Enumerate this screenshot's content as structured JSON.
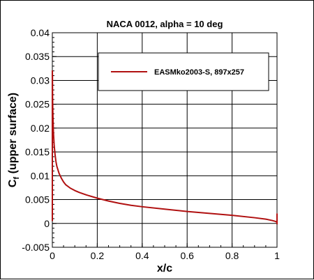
{
  "chart_data": {
    "type": "line",
    "title": "NACA 0012, alpha = 10 deg",
    "xlabel": "x/c",
    "ylabel_main": "C",
    "ylabel_sub": "f",
    "ylabel_rest": " (upper surface)",
    "xlim": [
      0,
      1
    ],
    "ylim": [
      -0.005,
      0.04
    ],
    "xticks": [
      0,
      0.2,
      0.4,
      0.6,
      0.8,
      1
    ],
    "xtick_labels": [
      "0",
      "0.2",
      "0.4",
      "0.6",
      "0.8",
      "1"
    ],
    "yticks": [
      -0.005,
      0,
      0.005,
      0.01,
      0.015,
      0.02,
      0.025,
      0.03,
      0.035,
      0.04
    ],
    "ytick_labels": [
      "-0.005",
      "0",
      "0.005",
      "0.01",
      "0.015",
      "0.02",
      "0.025",
      "0.03",
      "0.035",
      "0.04"
    ],
    "grid": true,
    "legend_position": "top-right",
    "series": [
      {
        "name": "EASMko2003-S, 897x257",
        "color": "#b01010",
        "x": [
          0,
          0,
          0.0005,
          0.001,
          0.002,
          0.003,
          0.005,
          0.008,
          0.012,
          0.016,
          0.02,
          0.03,
          0.04,
          0.05,
          0.06,
          0.08,
          0.1,
          0.12,
          0.15,
          0.2,
          0.25,
          0.3,
          0.35,
          0.4,
          0.5,
          0.6,
          0.7,
          0.8,
          0.9,
          0.95,
          0.98,
          0.995,
          1,
          1,
          1
        ],
        "y": [
          0.0005,
          0.032,
          0.031,
          0.0265,
          0.024,
          0.022,
          0.019,
          0.0165,
          0.0145,
          0.013,
          0.012,
          0.0105,
          0.0095,
          0.0087,
          0.0081,
          0.0074,
          0.0069,
          0.0065,
          0.006,
          0.0053,
          0.0047,
          0.0042,
          0.0038,
          0.0035,
          0.003,
          0.0025,
          0.0021,
          0.0017,
          0.0012,
          0.0009,
          0.0006,
          0.0004,
          0.0002,
          0.002,
          -0.0002
        ]
      }
    ]
  }
}
